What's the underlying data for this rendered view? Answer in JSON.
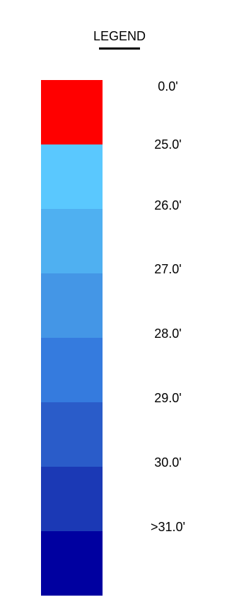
{
  "legend": {
    "title": "LEGEND",
    "entries": [
      {
        "label": "0.0'",
        "color": "#ff0000"
      },
      {
        "label": "25.0'",
        "color": "#5ac8fe"
      },
      {
        "label": "26.0'",
        "color": "#4fb0f1"
      },
      {
        "label": "27.0'",
        "color": "#4496e6"
      },
      {
        "label": "28.0'",
        "color": "#357bde"
      },
      {
        "label": "29.0'",
        "color": "#2a5cc9"
      },
      {
        "label": "30.0'",
        "color": "#1b39b5"
      },
      {
        "label": ">31.0'",
        "color": "#0000a0"
      }
    ]
  }
}
